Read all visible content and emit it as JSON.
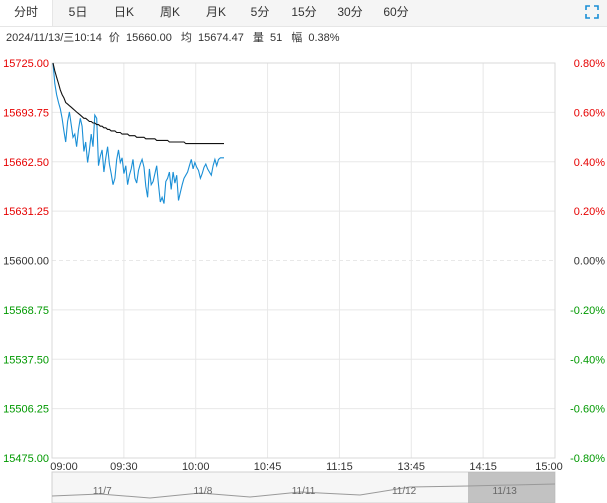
{
  "tabs": [
    {
      "label": "分时",
      "active": true
    },
    {
      "label": "5日",
      "active": false
    },
    {
      "label": "日K",
      "active": false
    },
    {
      "label": "周K",
      "active": false
    },
    {
      "label": "月K",
      "active": false
    },
    {
      "label": "5分",
      "active": false
    },
    {
      "label": "15分",
      "active": false
    },
    {
      "label": "30分",
      "active": false
    },
    {
      "label": "60分",
      "active": false
    }
  ],
  "info": {
    "datetime": "2024/11/13/三10:14",
    "price_label": "价",
    "price": "15660.00",
    "avg_label": "均",
    "avg": "15674.47",
    "vol_label": "量",
    "vol": "51",
    "change_label": "幅",
    "change": "0.38%"
  },
  "colors": {
    "up": "#e60000",
    "down": "#009900",
    "price_line": "#1a8fd6",
    "avg_line": "#111111",
    "grid": "#e8e8e8"
  },
  "chart_data": {
    "type": "line",
    "y_left_ticks": [
      "15725.00",
      "15693.75",
      "15662.50",
      "15631.25",
      "15600.00",
      "15568.75",
      "15537.50",
      "15506.25",
      "15475.00"
    ],
    "y_right_ticks": [
      "0.80%",
      "0.60%",
      "0.40%",
      "0.20%",
      "0.00%",
      "-0.20%",
      "-0.40%",
      "-0.60%",
      "-0.80%"
    ],
    "x_ticks": [
      "09:00",
      "09:30",
      "10:00",
      "10:45",
      "11:15",
      "13:45",
      "14:15",
      "15:00"
    ],
    "ylim": [
      15475,
      15725
    ],
    "series": [
      {
        "key": "price",
        "values": [
          15725,
          15712,
          15705,
          15700,
          15696,
          15690,
          15682,
          15675,
          15688,
          15694,
          15686,
          15678,
          15680,
          15672,
          15683,
          15690,
          15685,
          15669,
          15675,
          15662,
          15670,
          15680,
          15672,
          15692,
          15690,
          15660,
          15666,
          15670,
          15656,
          15665,
          15672,
          15661,
          15655,
          15648,
          15652,
          15664,
          15670,
          15662,
          15665,
          15655,
          15660,
          15648,
          15654,
          15658,
          15664,
          15652,
          15649,
          15657,
          15661,
          15664,
          15659,
          15647,
          15640,
          15658,
          15648,
          15650,
          15655,
          15660,
          15648,
          15637,
          15640,
          15636,
          15650,
          15652,
          15656,
          15645,
          15656,
          15649,
          15654,
          15638,
          15643,
          15648,
          15652,
          15654,
          15656,
          15660,
          15664,
          15658,
          15662,
          15659,
          15657,
          15652,
          15655,
          15659,
          15661,
          15658,
          15656,
          15654,
          15660,
          15664,
          15660,
          15664,
          15665,
          15665,
          15665
        ]
      },
      {
        "key": "avg",
        "values": [
          15725,
          15720,
          15716,
          15712,
          15708,
          15705,
          15703,
          15700,
          15699,
          15698,
          15697,
          15696,
          15695,
          15694,
          15693,
          15692,
          15691,
          15690,
          15690,
          15689,
          15688,
          15688,
          15687,
          15687,
          15686,
          15686,
          15685,
          15685,
          15684,
          15684,
          15683,
          15683,
          15682,
          15682,
          15682,
          15681,
          15681,
          15681,
          15680,
          15680,
          15680,
          15680,
          15679,
          15679,
          15679,
          15679,
          15678,
          15678,
          15678,
          15678,
          15678,
          15677,
          15677,
          15677,
          15677,
          15677,
          15677,
          15676,
          15676,
          15676,
          15676,
          15676,
          15676,
          15676,
          15675,
          15675,
          15675,
          15675,
          15675,
          15675,
          15675,
          15675,
          15675,
          15674,
          15674,
          15674,
          15674,
          15674,
          15674,
          15674,
          15674,
          15674,
          15674,
          15674,
          15674,
          15674,
          15674,
          15674,
          15674,
          15674,
          15674,
          15674,
          15674,
          15674,
          15674
        ]
      }
    ]
  },
  "navigator": {
    "labels": [
      "11/7",
      "11/8",
      "11/11",
      "11/12",
      "11/13"
    ]
  }
}
